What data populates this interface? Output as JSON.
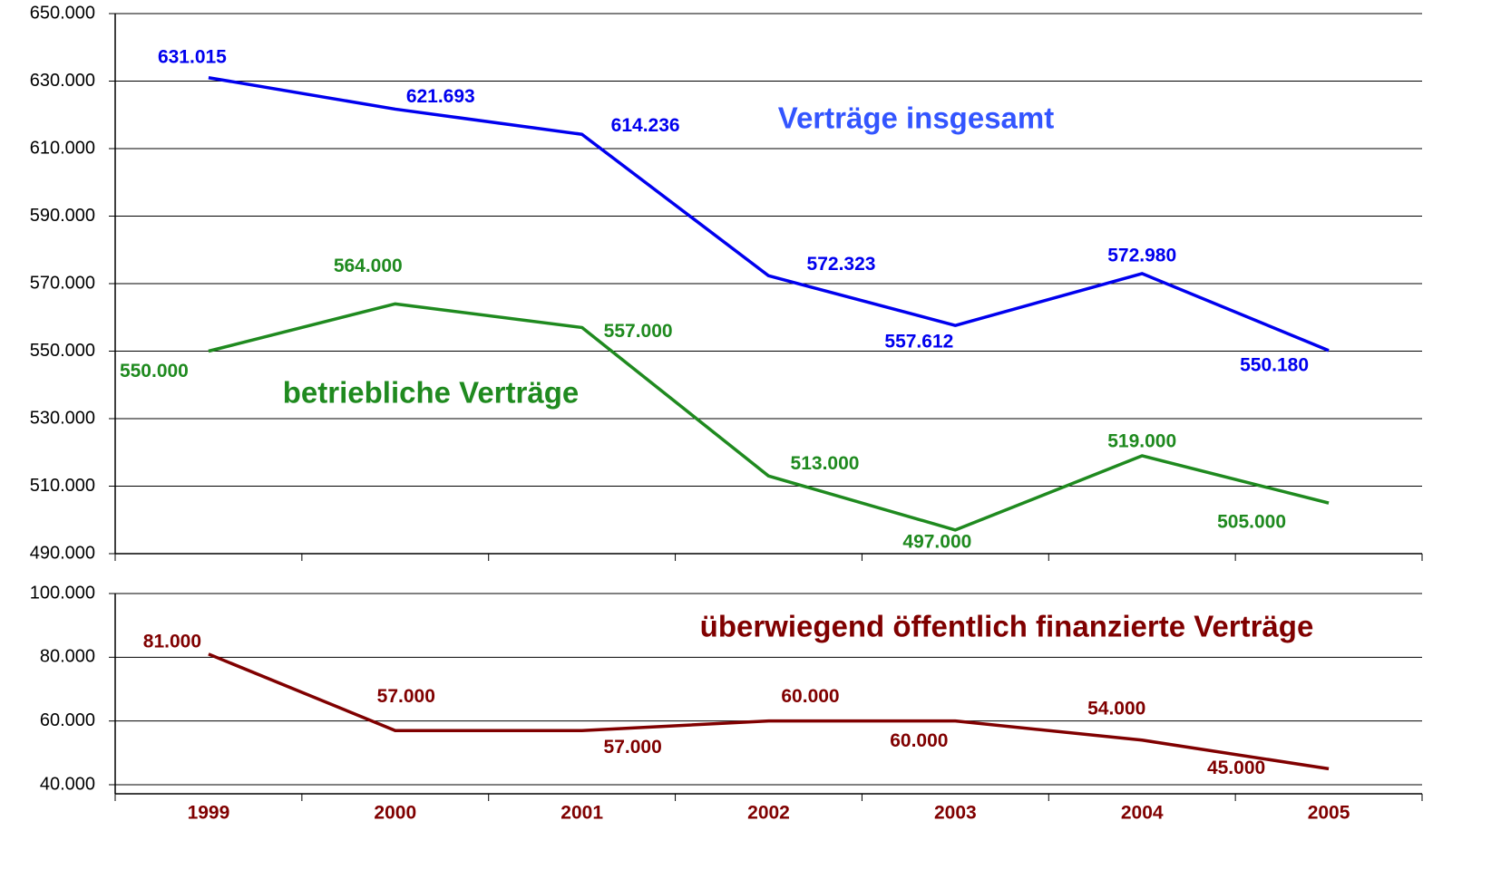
{
  "chart_data": [
    {
      "type": "line",
      "ylim": [
        490000,
        650000
      ],
      "yticks": [
        {
          "value": 490000,
          "label": "490.000"
        },
        {
          "value": 510000,
          "label": "510.000"
        },
        {
          "value": 530000,
          "label": "530.000"
        },
        {
          "value": 550000,
          "label": "550.000"
        },
        {
          "value": 570000,
          "label": "570.000"
        },
        {
          "value": 590000,
          "label": "590.000"
        },
        {
          "value": 610000,
          "label": "610.000"
        },
        {
          "value": 630000,
          "label": "630.000"
        },
        {
          "value": 650000,
          "label": "650.000"
        }
      ],
      "grid": true,
      "series": [
        {
          "name": "Verträge insgesamt",
          "color": "#0000ee",
          "values": [
            631015,
            621693,
            614236,
            572323,
            557612,
            572980,
            550180
          ],
          "value_labels": [
            "631.015",
            "621.693",
            "614.236",
            "572.323",
            "557.612",
            "572.980",
            "550.180"
          ]
        },
        {
          "name": "betriebliche Verträge",
          "color": "#1f8a1f",
          "values": [
            550000,
            564000,
            557000,
            513000,
            497000,
            519000,
            505000
          ],
          "value_labels": [
            "550.000",
            "564.000",
            "557.000",
            "513.000",
            "497.000",
            "519.000",
            "505.000"
          ]
        }
      ]
    },
    {
      "type": "line",
      "categories": [
        "1999",
        "2000",
        "2001",
        "2002",
        "2003",
        "2004",
        "2005"
      ],
      "ylim": [
        40000,
        100000
      ],
      "yticks": [
        {
          "value": 40000,
          "label": "40.000"
        },
        {
          "value": 60000,
          "label": "60.000"
        },
        {
          "value": 80000,
          "label": "80.000"
        },
        {
          "value": 100000,
          "label": "100.000"
        }
      ],
      "grid": true,
      "series": [
        {
          "name": "überwiegend öffentlich finanzierte Verträge",
          "color": "#800000",
          "values": [
            81000,
            57000,
            57000,
            60000,
            60000,
            54000,
            45000
          ],
          "value_labels": [
            "81.000",
            "57.000",
            "57.000",
            "60.000",
            "60.000",
            "54.000",
            "45.000"
          ]
        }
      ]
    }
  ]
}
